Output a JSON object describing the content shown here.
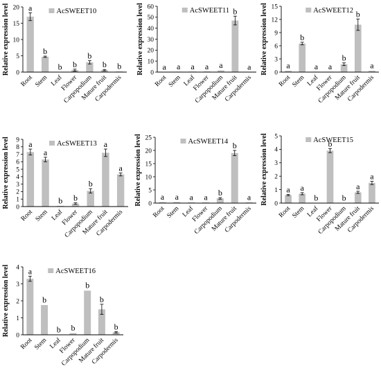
{
  "figure_ylabel": "Relative expression level",
  "colors": {
    "bar": "#bfbfbf",
    "axis": "#000000",
    "error": "#000000"
  },
  "chart_data": [
    {
      "type": "bar",
      "legend": "AcSWEET10",
      "legend_placement": "top",
      "ylabel": "Relative expression level",
      "categories": [
        "Root",
        "Stem",
        "Leaf",
        "Flower",
        "Carpopodium",
        "Mature fruit",
        "Carpodermis"
      ],
      "values": [
        17,
        4.7,
        0.1,
        0.6,
        3.0,
        0.6,
        0.2
      ],
      "errors": [
        1.2,
        0.2,
        0.05,
        0.3,
        0.5,
        0.2,
        0.1
      ],
      "significance": [
        "a",
        "b",
        "b",
        "b",
        "b",
        "b",
        "b"
      ],
      "ylim": [
        0,
        20
      ],
      "yticks": [
        "0",
        "5",
        "10",
        "15",
        "20"
      ],
      "grid": false
    },
    {
      "type": "bar",
      "legend": "AcSWEET11",
      "legend_placement": "top",
      "ylabel": "Relative expression level",
      "categories": [
        "Root",
        "Stem",
        "Leaf",
        "Flower",
        "Carpopodium",
        "Mature fruit",
        "Carpodermis"
      ],
      "values": [
        0.3,
        0.4,
        0.5,
        0.6,
        1.5,
        47,
        0.3
      ],
      "errors": [
        0.1,
        0.1,
        0.1,
        0.1,
        0.4,
        4,
        0.1
      ],
      "significance": [
        "a",
        "a",
        "a",
        "a",
        "a",
        "b",
        "a"
      ],
      "ylim": [
        0,
        60
      ],
      "yticks": [
        "0",
        "10",
        "20",
        "30",
        "40",
        "50",
        "60"
      ],
      "grid": false
    },
    {
      "type": "bar",
      "legend": "AcSWEET12",
      "legend_placement": "top",
      "ylabel": "Relative expression level",
      "categories": [
        "Root",
        "Stem",
        "Leaf",
        "Flower",
        "Carpopodium",
        "Mature fruit",
        "Carpodermis"
      ],
      "values": [
        0.3,
        6.5,
        0.1,
        0.1,
        1.8,
        10.8,
        0.3
      ],
      "errors": [
        0.1,
        0.3,
        0.05,
        0.05,
        0.3,
        1.3,
        0.1
      ],
      "significance": [
        "a",
        "b",
        "a",
        "a",
        "b",
        "b",
        "a"
      ],
      "ylim": [
        0,
        15
      ],
      "yticks": [
        "0",
        "3",
        "6",
        "9",
        "12",
        "15"
      ],
      "grid": false
    },
    {
      "type": "bar",
      "legend": "AcSWEET13",
      "legend_placement": "top",
      "ylabel": "Relative expression level",
      "categories": [
        "Root",
        "Stem",
        "Leaf",
        "Flower",
        "Carpopodium",
        "Mature fruit",
        "Carpodermis"
      ],
      "values": [
        7.3,
        6.3,
        0.1,
        0.4,
        2.1,
        7.2,
        4.3
      ],
      "errors": [
        0.4,
        0.3,
        0.05,
        0.1,
        0.3,
        0.5,
        0.2
      ],
      "significance": [
        "a",
        "a",
        "b",
        "b",
        "b",
        "a",
        "a"
      ],
      "ylim": [
        0,
        9
      ],
      "yticks": [
        "0",
        "1",
        "2",
        "3",
        "4",
        "5",
        "6",
        "7",
        "8",
        "9"
      ],
      "grid": false
    },
    {
      "type": "bar",
      "legend": "AcSWEET14",
      "legend_placement": "top",
      "ylabel": "Relative expression level",
      "categories": [
        "Root",
        "Stem",
        "Leaf",
        "Flower",
        "Carpopodium",
        "Mature fruit",
        "Carpodermis"
      ],
      "values": [
        0.4,
        0.4,
        0.3,
        0.3,
        1.8,
        19,
        0.3
      ],
      "errors": [
        0.1,
        0.1,
        0.1,
        0.1,
        0.3,
        1.0,
        0.1
      ],
      "significance": [
        "a",
        "a",
        "a",
        "a",
        "b",
        "b",
        "a"
      ],
      "ylim": [
        0,
        25
      ],
      "yticks": [
        "0",
        "5",
        "10",
        "15",
        "20",
        "25"
      ],
      "grid": false
    },
    {
      "type": "bar",
      "legend": "AcSWEET15",
      "legend_placement": "top",
      "ylabel": "Relative expression level",
      "categories": [
        "Root",
        "Stem",
        "Leaf",
        "Flower",
        "Carpopodium",
        "Mature fruit",
        "Carpodermis"
      ],
      "values": [
        0.6,
        0.7,
        0.02,
        3.9,
        0.02,
        0.8,
        1.5
      ],
      "errors": [
        0.05,
        0.08,
        0.01,
        0.15,
        0.01,
        0.08,
        0.12
      ],
      "significance": [
        "a",
        "a",
        "b",
        "b",
        "b",
        "a",
        "a"
      ],
      "ylim": [
        0,
        5
      ],
      "yticks": [
        "0",
        "1",
        "2",
        "3",
        "4",
        "5"
      ],
      "grid": false
    },
    {
      "type": "bar",
      "legend": "AcSWEET16",
      "legend_placement": "top",
      "ylabel": "Relative expression level",
      "categories": [
        "Root",
        "Stem",
        "Leaf",
        "Flower",
        "Carpopodium",
        "Mature fruit",
        "Carpodermis"
      ],
      "values": [
        3.3,
        1.75,
        0.02,
        0.1,
        2.6,
        1.5,
        0.15
      ],
      "errors": [
        0.15,
        0.03,
        0.01,
        0.03,
        0.03,
        0.3,
        0.04
      ],
      "significance": [
        "a",
        "b",
        "b",
        "b",
        "b",
        "b",
        "b"
      ],
      "ylim": [
        0,
        4
      ],
      "yticks": [
        "0",
        "1",
        "2",
        "3",
        "4"
      ],
      "grid": false
    }
  ]
}
